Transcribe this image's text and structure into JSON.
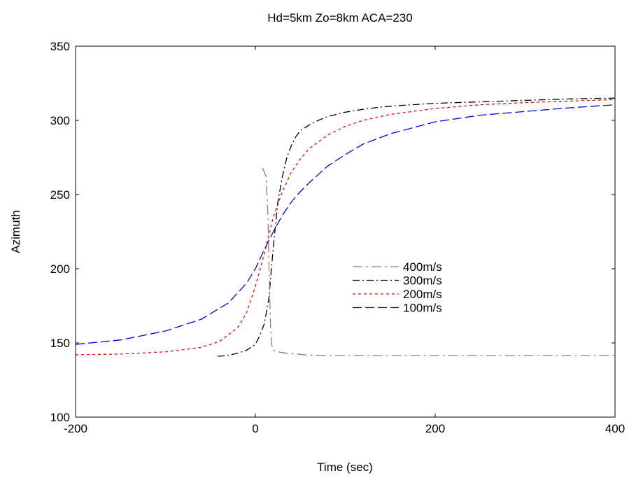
{
  "chart_data": {
    "type": "line",
    "title": "Hd=5km  Zo=8km  ACA=230",
    "xlabel": "Time (sec)",
    "ylabel": "Azimuth",
    "xlim": [
      -200,
      400
    ],
    "ylim": [
      100,
      350
    ],
    "xticks": [
      -200,
      0,
      200,
      400
    ],
    "yticks": [
      100,
      150,
      200,
      250,
      300,
      350
    ],
    "legend_position": "center-right",
    "grid": false,
    "series": [
      {
        "name": "400m/s",
        "color": "#808080",
        "dash": "long-dash-dot",
        "x": [
          8,
          12,
          14,
          15,
          16,
          17,
          18,
          19,
          20,
          22,
          25,
          30,
          35,
          40,
          45,
          50,
          55,
          60,
          65,
          70,
          80,
          90,
          100,
          110,
          120,
          140,
          160,
          180,
          200,
          250,
          300,
          350,
          400
        ],
        "y": [
          268,
          262,
          236,
          205,
          180,
          160,
          150,
          146,
          145,
          144.5,
          144,
          143.5,
          143,
          142.8,
          142.6,
          142.3,
          142,
          141.8,
          141.7,
          141.6,
          141.5,
          141.5,
          141.5,
          141.5,
          141.5,
          141.5,
          141.5,
          141.5,
          141.5,
          141.5,
          141.5,
          141.5,
          141.5
        ]
      },
      {
        "name": "300m/s",
        "color": "#000000",
        "dash": "dash-dot",
        "x": [
          -42,
          -30,
          -20,
          -10,
          0,
          5,
          10,
          15,
          20,
          25,
          30,
          35,
          40,
          45,
          50,
          60,
          70,
          80,
          90,
          100,
          120,
          140,
          160,
          200,
          250,
          300,
          350,
          400
        ],
        "y": [
          141,
          141.5,
          143,
          145,
          149,
          155,
          163,
          180,
          215,
          245,
          262,
          275,
          283,
          289,
          293,
          297,
          300,
          302.5,
          304,
          305.5,
          307.5,
          309,
          310,
          311.5,
          312.5,
          313.5,
          314.5,
          315
        ]
      },
      {
        "name": "200m/s",
        "color": "#ff0000",
        "dash": "short-dash",
        "x": [
          -200,
          -150,
          -100,
          -60,
          -40,
          -20,
          -10,
          0,
          10,
          20,
          30,
          40,
          50,
          60,
          80,
          100,
          120,
          150,
          200,
          250,
          300,
          350,
          400
        ],
        "y": [
          142,
          142.5,
          144,
          147,
          151,
          160,
          170,
          188,
          210,
          235,
          252,
          265,
          274,
          281,
          290,
          296,
          300,
          304,
          308,
          310.5,
          312,
          313,
          314
        ]
      },
      {
        "name": "100m/s",
        "color": "#0000ff",
        "dash": "long-dash",
        "x": [
          -200,
          -150,
          -100,
          -60,
          -30,
          -10,
          0,
          10,
          20,
          30,
          40,
          50,
          60,
          80,
          100,
          120,
          150,
          200,
          250,
          300,
          350,
          400
        ],
        "y": [
          149,
          152,
          158,
          166,
          177,
          190,
          200,
          213,
          225,
          236,
          245,
          252,
          258,
          269,
          277,
          284,
          291,
          299,
          303.5,
          306,
          308.5,
          310.5
        ]
      }
    ]
  }
}
